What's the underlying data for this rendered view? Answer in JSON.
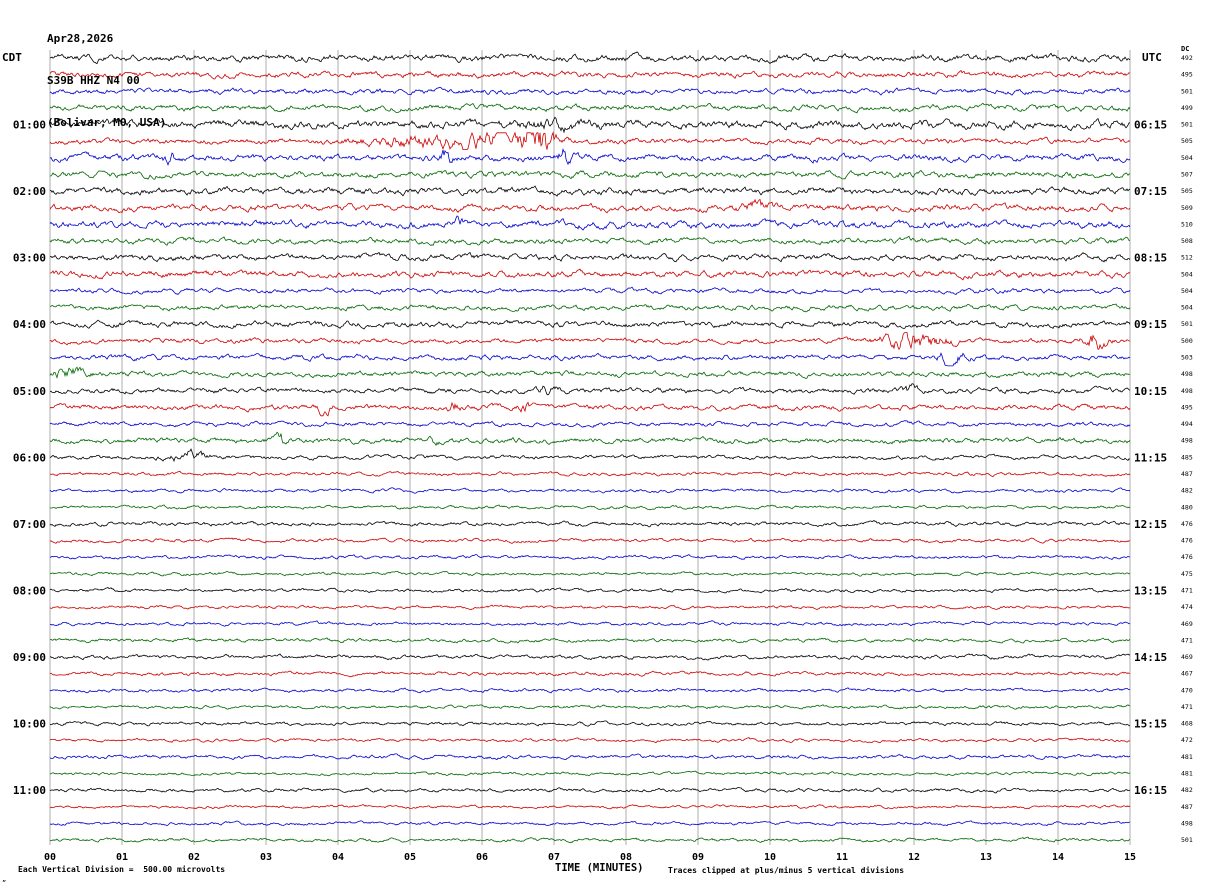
{
  "header": {
    "date": "Apr28,2026",
    "station": "S39B HHZ N4 00",
    "location": "(Bolivar, MO, USA)"
  },
  "axes": {
    "left_label": "CDT",
    "right_label": "UTC",
    "dc_label": "DC",
    "x_label": "TIME (MINUTES)",
    "x_ticks": [
      "00",
      "01",
      "02",
      "03",
      "04",
      "05",
      "06",
      "07",
      "08",
      "09",
      "10",
      "11",
      "12",
      "13",
      "14",
      "15"
    ]
  },
  "footer": {
    "scale_note": "Each Vertical Division =  500.00 microvolts",
    "clip_note": "Traces clipped at plus/minus 5 vertical divisions",
    "corner_mark": "„"
  },
  "palette": {
    "black": "#000000",
    "red": "#cc0000",
    "blue": "#0000cc",
    "green": "#006600"
  },
  "chart_data": {
    "type": "line",
    "title": "Helicorder seismogram S39B HHZ N4 00 (Bolivar, MO, USA)",
    "x_label": "TIME (MINUTES)",
    "x_range_minutes": [
      0,
      15
    ],
    "minutes_per_row": 15,
    "microvolts_per_division": 500.0,
    "clip_divisions": 5,
    "rows": [
      {
        "cdt": "",
        "utc": "",
        "dc": 492,
        "color": "black"
      },
      {
        "cdt": "",
        "utc": "",
        "dc": 495,
        "color": "red"
      },
      {
        "cdt": "",
        "utc": "",
        "dc": 501,
        "color": "blue"
      },
      {
        "cdt": "",
        "utc": "",
        "dc": 499,
        "color": "green"
      },
      {
        "cdt": "01:00",
        "utc": "06:15",
        "dc": 501,
        "color": "black"
      },
      {
        "cdt": "",
        "utc": "",
        "dc": 505,
        "color": "red"
      },
      {
        "cdt": "",
        "utc": "",
        "dc": 504,
        "color": "blue"
      },
      {
        "cdt": "",
        "utc": "",
        "dc": 507,
        "color": "green"
      },
      {
        "cdt": "02:00",
        "utc": "07:15",
        "dc": 505,
        "color": "black"
      },
      {
        "cdt": "",
        "utc": "",
        "dc": 509,
        "color": "red"
      },
      {
        "cdt": "",
        "utc": "",
        "dc": 510,
        "color": "blue"
      },
      {
        "cdt": "",
        "utc": "",
        "dc": 508,
        "color": "green"
      },
      {
        "cdt": "03:00",
        "utc": "08:15",
        "dc": 512,
        "color": "black"
      },
      {
        "cdt": "",
        "utc": "",
        "dc": 504,
        "color": "red"
      },
      {
        "cdt": "",
        "utc": "",
        "dc": 504,
        "color": "blue"
      },
      {
        "cdt": "",
        "utc": "",
        "dc": 504,
        "color": "green"
      },
      {
        "cdt": "04:00",
        "utc": "09:15",
        "dc": 501,
        "color": "black"
      },
      {
        "cdt": "",
        "utc": "",
        "dc": 500,
        "color": "red"
      },
      {
        "cdt": "",
        "utc": "",
        "dc": 503,
        "color": "blue"
      },
      {
        "cdt": "",
        "utc": "",
        "dc": 498,
        "color": "green"
      },
      {
        "cdt": "05:00",
        "utc": "10:15",
        "dc": 498,
        "color": "black"
      },
      {
        "cdt": "",
        "utc": "",
        "dc": 495,
        "color": "red"
      },
      {
        "cdt": "",
        "utc": "",
        "dc": 494,
        "color": "blue"
      },
      {
        "cdt": "",
        "utc": "",
        "dc": 498,
        "color": "green"
      },
      {
        "cdt": "06:00",
        "utc": "11:15",
        "dc": 485,
        "color": "black"
      },
      {
        "cdt": "",
        "utc": "",
        "dc": 487,
        "color": "red"
      },
      {
        "cdt": "",
        "utc": "",
        "dc": 482,
        "color": "blue"
      },
      {
        "cdt": "",
        "utc": "",
        "dc": 480,
        "color": "green"
      },
      {
        "cdt": "07:00",
        "utc": "12:15",
        "dc": 476,
        "color": "black"
      },
      {
        "cdt": "",
        "utc": "",
        "dc": 476,
        "color": "red"
      },
      {
        "cdt": "",
        "utc": "",
        "dc": 476,
        "color": "blue"
      },
      {
        "cdt": "",
        "utc": "",
        "dc": 475,
        "color": "green"
      },
      {
        "cdt": "08:00",
        "utc": "13:15",
        "dc": 471,
        "color": "black"
      },
      {
        "cdt": "",
        "utc": "",
        "dc": 474,
        "color": "red"
      },
      {
        "cdt": "",
        "utc": "",
        "dc": 469,
        "color": "blue"
      },
      {
        "cdt": "",
        "utc": "",
        "dc": 471,
        "color": "green"
      },
      {
        "cdt": "09:00",
        "utc": "14:15",
        "dc": 469,
        "color": "black"
      },
      {
        "cdt": "",
        "utc": "",
        "dc": 467,
        "color": "red"
      },
      {
        "cdt": "",
        "utc": "",
        "dc": 470,
        "color": "blue"
      },
      {
        "cdt": "",
        "utc": "",
        "dc": 471,
        "color": "green"
      },
      {
        "cdt": "10:00",
        "utc": "15:15",
        "dc": 468,
        "color": "black"
      },
      {
        "cdt": "",
        "utc": "",
        "dc": 472,
        "color": "red"
      },
      {
        "cdt": "",
        "utc": "",
        "dc": 481,
        "color": "blue"
      },
      {
        "cdt": "",
        "utc": "",
        "dc": 481,
        "color": "green"
      },
      {
        "cdt": "11:00",
        "utc": "16:15",
        "dc": 482,
        "color": "black"
      },
      {
        "cdt": "",
        "utc": "",
        "dc": 487,
        "color": "red"
      },
      {
        "cdt": "",
        "utc": "",
        "dc": 498,
        "color": "blue"
      },
      {
        "cdt": "",
        "utc": "",
        "dc": 501,
        "color": "green"
      }
    ],
    "events": [
      {
        "row": 4,
        "m": 7.0,
        "a": 1.5,
        "w": 0.6
      },
      {
        "row": 5,
        "m": 5.3,
        "a": 2.5,
        "w": 1.0
      },
      {
        "row": 5,
        "m": 6.35,
        "a": 3.5,
        "w": 0.5
      },
      {
        "row": 5,
        "m": 6.8,
        "a": 9,
        "w": 0.18
      },
      {
        "row": 6,
        "m": 1.65,
        "a": 2.5,
        "w": 0.1
      },
      {
        "row": 6,
        "m": 5.5,
        "a": 3.5,
        "w": 0.08
      },
      {
        "row": 6,
        "m": 7.15,
        "a": 4.5,
        "w": 0.1
      },
      {
        "row": 9,
        "m": 9.8,
        "a": 2.5,
        "w": 0.25
      },
      {
        "row": 10,
        "m": 5.7,
        "a": 2.5,
        "w": 0.1
      },
      {
        "row": 17,
        "m": 11.9,
        "a": 4.5,
        "w": 0.35
      },
      {
        "row": 17,
        "m": 12.35,
        "a": 2.5,
        "w": 0.2
      },
      {
        "row": 17,
        "m": 14.5,
        "a": 4,
        "w": 0.18
      },
      {
        "row": 18,
        "m": 12.5,
        "a": 3,
        "w": 0.2
      },
      {
        "row": 19,
        "m": 0.25,
        "a": 2.5,
        "w": 0.25
      },
      {
        "row": 20,
        "m": 6.9,
        "a": 2,
        "w": 0.15
      },
      {
        "row": 20,
        "m": 11.9,
        "a": 2,
        "w": 0.15
      },
      {
        "row": 21,
        "m": 3.8,
        "a": 3,
        "w": 0.1
      },
      {
        "row": 21,
        "m": 5.6,
        "a": 2.5,
        "w": 0.09
      },
      {
        "row": 21,
        "m": 6.6,
        "a": 2.5,
        "w": 0.09
      },
      {
        "row": 23,
        "m": 3.2,
        "a": 3,
        "w": 0.08
      },
      {
        "row": 23,
        "m": 5.35,
        "a": 2,
        "w": 0.08
      },
      {
        "row": 24,
        "m": 1.9,
        "a": 2.5,
        "w": 0.25
      }
    ]
  }
}
